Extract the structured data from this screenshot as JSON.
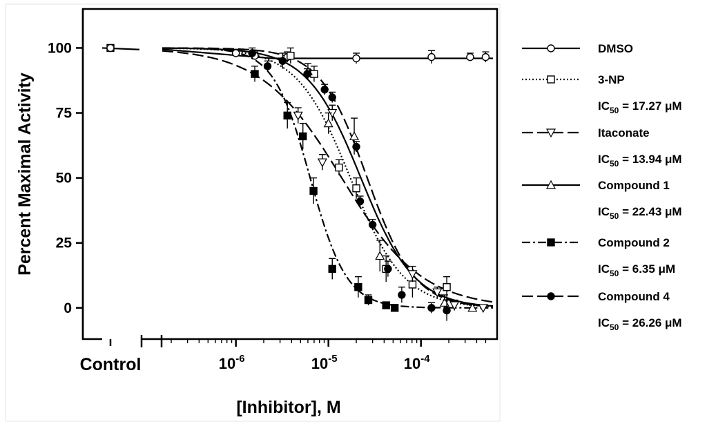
{
  "chart_data": {
    "type": "scatter",
    "title": "",
    "xlabel": "[Inhibitor], M",
    "ylabel": "Percent Maximal Activity",
    "xscale": "log",
    "xlim": [
      1.6e-07,
      0.0006
    ],
    "ylim": [
      -12,
      115
    ],
    "y_ticks": [
      0,
      25,
      50,
      75,
      100
    ],
    "y_tick_labels": [
      "0",
      "25",
      "50",
      "75",
      "100"
    ],
    "x_ticks": [
      {
        "value": 1e-06,
        "base": "10",
        "exp": "-6"
      },
      {
        "value": 1e-05,
        "base": "10",
        "exp": "-5"
      },
      {
        "value": 0.0001,
        "base": "10",
        "exp": "-4"
      }
    ],
    "control_label": "Control",
    "legend_position": "right",
    "series": [
      {
        "name": "DMSO",
        "ic50_text": "",
        "marker": "circle-open",
        "dash": "solid",
        "control": {
          "y": 100,
          "err": 1.5
        },
        "fit": {
          "type": "flat",
          "top": 99.5,
          "bottom": 96
        },
        "x": [
          1e-06,
          1.6e-06,
          3.6e-06,
          2e-05,
          0.00013,
          0.00034,
          0.0005
        ],
        "y": [
          98,
          97,
          96.5,
          96,
          96.5,
          96.5,
          96.5
        ],
        "err": [
          1.5,
          1.5,
          2,
          2,
          2.5,
          1.5,
          2
        ]
      },
      {
        "name": "3-NP",
        "ic50_text": "IC50 = 17.27 μM",
        "marker": "square-open",
        "dash": "dotted",
        "fit": {
          "type": "sigmoid",
          "top": 100,
          "bottom": 0,
          "ic50": 1.727e-05,
          "hill": 1.5
        },
        "x": [
          3.9e-06,
          7e-06,
          1.3e-05,
          2e-05,
          4.2e-05,
          8.1e-05,
          0.00019
        ],
        "y": [
          97,
          90,
          54,
          46,
          15,
          9,
          8
        ],
        "err": [
          3,
          3,
          3,
          4,
          5,
          5,
          4
        ]
      },
      {
        "name": "Itaconate",
        "ic50_text": "IC50 = 13.94 μM",
        "marker": "triangle-down-open",
        "dash": "longdash",
        "fit": {
          "type": "sigmoid",
          "top": 100,
          "bottom": 0,
          "ic50": 1.394e-05,
          "hill": 1.0
        },
        "x": [
          4.7e-06,
          8.6e-06,
          1.1e-05,
          8.1e-05,
          0.00015,
          0.00023,
          0.00047
        ],
        "y": [
          74,
          56,
          75,
          13,
          6,
          1,
          0
        ],
        "err": [
          3,
          3,
          3,
          3,
          2,
          2,
          1
        ]
      },
      {
        "name": "Compound 1",
        "ic50_text": "IC50 = 22.43 μM",
        "marker": "triangle-up-open",
        "dash": "solid",
        "fit": {
          "type": "sigmoid",
          "top": 100,
          "bottom": 0,
          "ic50": 2.243e-05,
          "hill": 1.5
        },
        "x": [
          6e-06,
          1e-05,
          1.9e-05,
          3.6e-05,
          0.00018,
          0.00036
        ],
        "y": [
          91,
          71,
          66,
          20,
          2,
          0
        ],
        "err": [
          3,
          4,
          7,
          6,
          3,
          1
        ]
      },
      {
        "name": "Compound 2",
        "ic50_text": "IC50 = 6.35 μM",
        "marker": "square-filled",
        "dash": "dashdot",
        "fit": {
          "type": "sigmoid",
          "top": 100,
          "bottom": 0,
          "ic50": 6.35e-06,
          "hill": 2.2
        },
        "x": [
          1.6e-06,
          3.6e-06,
          5.3e-06,
          6.9e-06,
          1.1e-05,
          2.1e-05,
          2.7e-05,
          4.2e-05,
          5.2e-05
        ],
        "y": [
          90,
          74,
          66,
          45,
          15,
          8,
          3,
          1,
          0
        ],
        "err": [
          3,
          5,
          5,
          5,
          4,
          4,
          2,
          1,
          1
        ]
      },
      {
        "name": "Compound 4",
        "ic50_text": "IC50 = 26.26 μM",
        "marker": "circle-filled",
        "dash": "longdash",
        "fit": {
          "type": "sigmoid",
          "top": 100,
          "bottom": 0,
          "ic50": 2.626e-05,
          "hill": 1.7
        },
        "x": [
          1.5e-06,
          2.2e-06,
          3.2e-06,
          5.9e-06,
          9.1e-06,
          1.1e-05,
          2e-05,
          2.2e-05,
          3e-05,
          4.4e-05,
          6.2e-05,
          0.00013,
          0.00019
        ],
        "y": [
          98,
          93,
          95,
          90,
          84,
          81,
          62,
          41,
          32,
          15,
          5,
          0,
          -1
        ],
        "err": [
          2,
          2,
          3,
          2,
          2,
          2,
          2,
          2,
          2,
          3,
          3,
          2,
          4
        ]
      }
    ]
  }
}
